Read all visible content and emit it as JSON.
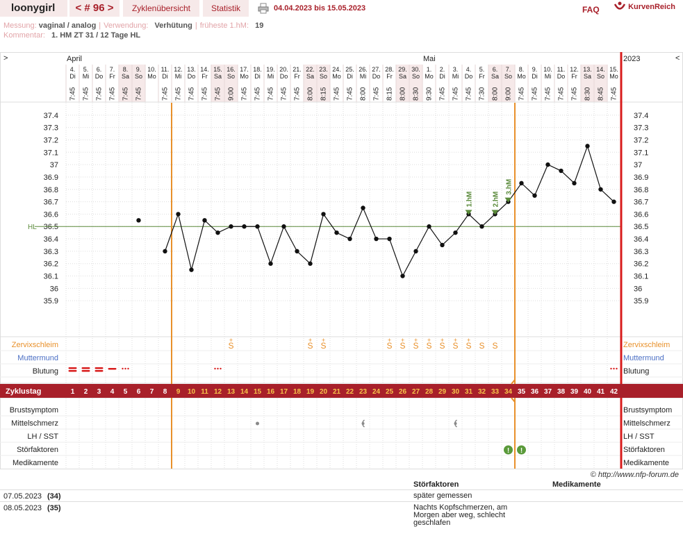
{
  "header": {
    "user": "loonygirl",
    "cycle_nav": "< # 96 >",
    "tabs": [
      "Zyklenübersicht",
      "Statistik"
    ],
    "date_range": "04.04.2023 bis 15.05.2023",
    "faq": "FAQ",
    "logo_text": "KurvenReich"
  },
  "info": {
    "messung_label": "Messung:",
    "messung_value": "vaginal / analog",
    "verwendung_label": "Verwendung:",
    "verwendung_value": "Verhütung",
    "frueheste_label": "früheste 1.hM:",
    "frueheste_value": "19",
    "kommentar_label": "Kommentar:",
    "kommentar_value": "1. HM ZT 31 / 12 Tage HL"
  },
  "chart_data": {
    "type": "line",
    "left_arrow": ">",
    "right_arrow": "<",
    "year": "2023",
    "months": [
      {
        "label": "April",
        "day_index": 0
      },
      {
        "label": "Mai",
        "day_index": 27
      }
    ],
    "dates": [
      "4.",
      "5.",
      "6.",
      "7.",
      "8.",
      "9.",
      "10.",
      "11.",
      "12.",
      "13.",
      "14.",
      "15.",
      "16.",
      "17.",
      "18.",
      "19.",
      "20.",
      "21.",
      "22.",
      "23.",
      "24.",
      "25.",
      "26.",
      "27.",
      "28.",
      "29.",
      "30.",
      "1.",
      "2.",
      "3.",
      "4.",
      "5.",
      "6.",
      "7.",
      "8.",
      "9.",
      "10.",
      "11.",
      "12.",
      "13.",
      "14.",
      "15."
    ],
    "weekdays": [
      "Di",
      "Mi",
      "Do",
      "Fr",
      "Sa",
      "So",
      "Mo",
      "Di",
      "Mi",
      "Do",
      "Fr",
      "Sa",
      "So",
      "Mo",
      "Di",
      "Mi",
      "Do",
      "Fr",
      "Sa",
      "So",
      "Mo",
      "Di",
      "Mi",
      "Do",
      "Fr",
      "Sa",
      "So",
      "Mo",
      "Di",
      "Mi",
      "Do",
      "Fr",
      "Sa",
      "So",
      "Mo",
      "Di",
      "Mi",
      "Do",
      "Fr",
      "Sa",
      "So",
      "Mo"
    ],
    "times": [
      "7:45",
      "7:45",
      "7:45",
      "7:45",
      "7:45",
      "7:45",
      "",
      "7:45",
      "7:45",
      "7:45",
      "7:45",
      "7:45",
      "9:00",
      "7:45",
      "7:45",
      "7:45",
      "7:45",
      "7:45",
      "8:00",
      "8:15",
      "7:45",
      "7:45",
      "8:00",
      "7:45",
      "8:15",
      "8:00",
      "8:30",
      "9:30",
      "7:45",
      "7:45",
      "7:45",
      "7:30",
      "8:00",
      "9:00",
      "7:45",
      "7:45",
      "7:45",
      "7:45",
      "7:45",
      "8:30",
      "8:45",
      "7:45"
    ],
    "cycle_days": [
      1,
      2,
      3,
      4,
      5,
      6,
      7,
      8,
      9,
      10,
      11,
      12,
      13,
      14,
      15,
      16,
      17,
      18,
      19,
      20,
      21,
      22,
      23,
      24,
      25,
      26,
      27,
      28,
      29,
      30,
      31,
      32,
      33,
      34,
      35,
      36,
      37,
      38,
      39,
      40,
      41,
      42
    ],
    "temperatures": [
      null,
      null,
      null,
      null,
      null,
      36.55,
      null,
      36.3,
      36.6,
      36.15,
      36.55,
      36.45,
      36.5,
      36.5,
      36.5,
      36.2,
      36.5,
      36.3,
      36.2,
      36.6,
      36.45,
      36.4,
      36.65,
      36.4,
      36.4,
      36.1,
      36.3,
      36.5,
      36.35,
      36.45,
      36.6,
      36.5,
      36.6,
      36.7,
      36.85,
      36.75,
      37.0,
      36.95,
      36.85,
      37.15,
      36.8,
      36.7
    ],
    "y_ticks": [
      "37.4",
      "37.3",
      "37.2",
      "37.1",
      "37",
      "36.9",
      "36.8",
      "36.7",
      "36.6",
      "36.5",
      "36.4",
      "36.3",
      "36.2",
      "36.1",
      "36",
      "35.9"
    ],
    "y_tick_values": [
      37.4,
      37.3,
      37.2,
      37.1,
      37.0,
      36.9,
      36.8,
      36.7,
      36.6,
      36.5,
      36.4,
      36.3,
      36.2,
      36.1,
      36.0,
      35.9
    ],
    "hl_label": "HL",
    "hl_value": 36.5,
    "marker_days": [
      9,
      35
    ],
    "hm_markers": [
      {
        "label": "1.hM",
        "day_index": 30
      },
      {
        "label": "2.hM",
        "day_index": 32
      },
      {
        "label": "3.hM",
        "day_index": 33
      }
    ],
    "rows_top": [
      "Zervixschleim",
      "Muttermund",
      "Blutung"
    ],
    "rows_bottom": [
      "Brustsymptom",
      "Mittelschmerz",
      "LH / SST",
      "Störfaktoren",
      "Medikamente"
    ],
    "zykluslabel": "Zyklustag",
    "cervix": [
      {
        "day_index": 12,
        "symbol": "S+"
      },
      {
        "day_index": 18,
        "symbol": "S+"
      },
      {
        "day_index": 19,
        "symbol": "S+"
      },
      {
        "day_index": 24,
        "symbol": "S+"
      },
      {
        "day_index": 25,
        "symbol": "S+"
      },
      {
        "day_index": 26,
        "symbol": "S+"
      },
      {
        "day_index": 27,
        "symbol": "S+"
      },
      {
        "day_index": 28,
        "symbol": "S+"
      },
      {
        "day_index": 29,
        "symbol": "S+"
      },
      {
        "day_index": 30,
        "symbol": "S+"
      },
      {
        "day_index": 31,
        "symbol": "S"
      },
      {
        "day_index": 32,
        "symbol": "S"
      }
    ],
    "bleeding": [
      {
        "day_index": 0,
        "level": "strong"
      },
      {
        "day_index": 1,
        "level": "strong"
      },
      {
        "day_index": 2,
        "level": "strong"
      },
      {
        "day_index": 3,
        "level": "medium"
      },
      {
        "day_index": 4,
        "level": "spotting"
      },
      {
        "day_index": 11,
        "level": "spotting"
      },
      {
        "day_index": 41,
        "level": "spotting"
      }
    ],
    "mittelschmerz": [
      {
        "day_index": 14,
        "kind": "dot"
      },
      {
        "day_index": 22,
        "kind": "left"
      },
      {
        "day_index": 29,
        "kind": "left"
      }
    ],
    "stoerfaktoren": [
      33,
      34
    ],
    "colors": {
      "accent": "#a8202a",
      "orange": "#e8902a",
      "red_line": "#d81c1c",
      "hl_green": "#5a8a3a",
      "weekend": "#f6e9e9",
      "muttermund": "#4b6fc4"
    }
  },
  "footer": {
    "copyright": "© http://www.nfp-forum.de",
    "col_stoer": "Störfaktoren",
    "col_medi": "Medikamente",
    "notes": [
      {
        "date": "07.05.2023",
        "day": "(34)",
        "text": "später gemessen"
      },
      {
        "date": "08.05.2023",
        "day": "(35)",
        "text": "Nachts Kopfschmerzen, am Morgen aber weg, schlecht geschlafen"
      }
    ]
  }
}
